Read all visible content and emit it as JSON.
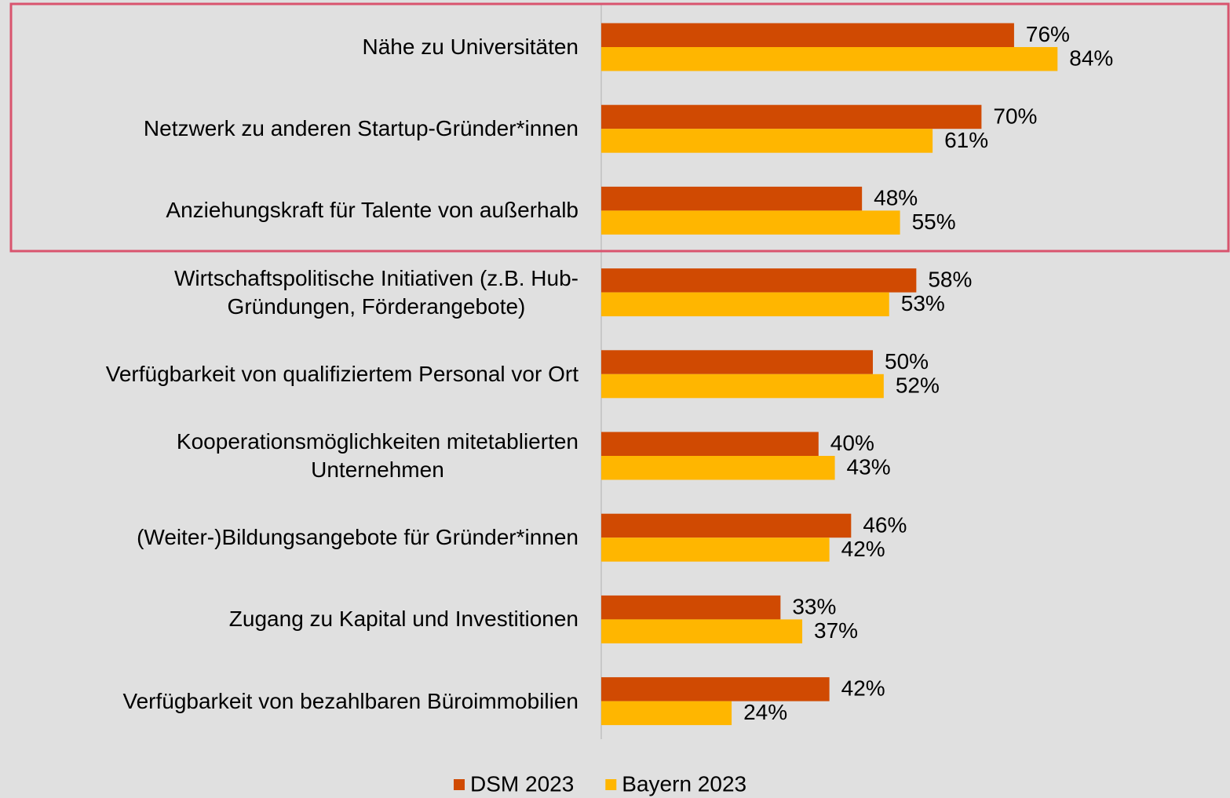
{
  "chart_data": {
    "type": "bar",
    "orientation": "horizontal",
    "categories": [
      "Nähe zu Universitäten",
      "Netzwerk zu anderen Startup-Gründer*innen",
      "Anziehungskraft für Talente von außerhalb",
      "Wirtschaftspolitische Initiativen (z.B. Hub-\nGründungen, Förderangebote)",
      "Verfügbarkeit von qualifiziertem Personal vor Ort",
      "Kooperationsmöglichkeiten mitetablierten\nUnternehmen",
      "(Weiter-)Bildungsangebote für Gründer*innen",
      "Zugang zu Kapital und Investitionen",
      "Verfügbarkeit von bezahlbaren Büroimmobilien"
    ],
    "series": [
      {
        "name": "DSM 2023",
        "color": "#d04a02",
        "values": [
          76,
          70,
          48,
          58,
          50,
          40,
          46,
          33,
          42
        ],
        "value_labels": [
          "76%",
          "70%",
          "48%",
          "58%",
          "50%",
          "40%",
          "46%",
          "33%",
          "42%"
        ]
      },
      {
        "name": "Bayern 2023",
        "color": "#ffb600",
        "values": [
          84,
          61,
          55,
          53,
          52,
          43,
          42,
          37,
          24
        ],
        "value_labels": [
          "84%",
          "61%",
          "55%",
          "53%",
          "52%",
          "43%",
          "42%",
          "37%",
          "24%"
        ]
      }
    ],
    "legend": "bottom"
  }
}
